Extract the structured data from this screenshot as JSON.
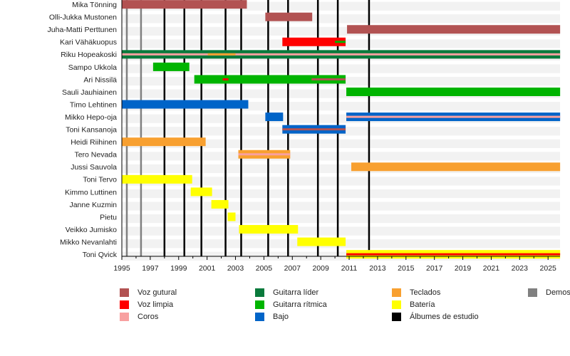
{
  "chart_data": {
    "type": "timeline",
    "xlim": [
      1995,
      2025.85
    ],
    "x_ticks": [
      1995,
      1997,
      1999,
      2001,
      2003,
      2005,
      2007,
      2009,
      2011,
      2013,
      2015,
      2017,
      2019,
      2021,
      2023,
      2025
    ],
    "roles": {
      "voz_gutural": {
        "label": "Voz gutural",
        "color": "#b25252"
      },
      "voz_limpia": {
        "label": "Voz limpia",
        "color": "#ff0000"
      },
      "coros": {
        "label": "Coros",
        "color": "#f8a0a0"
      },
      "guitarra_lider": {
        "label": "Guitarra líder",
        "color": "#0a7a3c"
      },
      "guitarra_ritmica": {
        "label": "Guitarra rítmica",
        "color": "#00b400"
      },
      "bajo": {
        "label": "Bajo",
        "color": "#0064c8"
      },
      "teclados": {
        "label": "Teclados",
        "color": "#f8a030"
      },
      "bateria": {
        "label": "Batería",
        "color": "#ffff00"
      },
      "albumes": {
        "label": "Álbumes de estudio",
        "color": "#000000"
      },
      "demos": {
        "label": "Demos",
        "color": "#808080"
      }
    },
    "legend_columns": [
      [
        "voz_gutural",
        "voz_limpia",
        "coros"
      ],
      [
        "guitarra_lider",
        "guitarra_ritmica",
        "bajo"
      ],
      [
        "teclados",
        "bateria",
        "albumes"
      ],
      [
        "demos"
      ]
    ],
    "demos": [
      1995.35,
      1996.35
    ],
    "albums": [
      1998.0,
      1999.4,
      2000.6,
      2002.3,
      2003.4,
      2005.3,
      2006.7,
      2008.8,
      2010.2,
      2012.4
    ],
    "members": [
      {
        "name": "Mika Tönning",
        "bars": [
          {
            "role": "voz_gutural",
            "start": 1995,
            "end": 2003.8
          }
        ]
      },
      {
        "name": "Olli-Jukka Mustonen",
        "bars": [
          {
            "role": "voz_gutural",
            "start": 2005.1,
            "end": 2008.4
          }
        ]
      },
      {
        "name": "Juha-Matti Perttunen",
        "bars": [
          {
            "role": "voz_gutural",
            "start": 2010.85,
            "end": 2025.85
          }
        ]
      },
      {
        "name": "Kari Vähäkuopus",
        "bars": [
          {
            "role": "voz_limpia",
            "start": 2006.3,
            "end": 2010.75
          },
          {
            "role": "guitarra_ritmica",
            "start": 2010.0,
            "end": 2010.75,
            "thin": true
          }
        ]
      },
      {
        "name": "Riku Hopeakoski",
        "bars": [
          {
            "role": "guitarra_lider",
            "start": 1995,
            "end": 2025.85
          },
          {
            "role": "coros",
            "start": 1995,
            "end": 2025.85,
            "thin": true
          },
          {
            "role": "teclados",
            "start": 2001.05,
            "end": 2003.0,
            "thin": true
          }
        ]
      },
      {
        "name": "Sampo Ukkola",
        "bars": [
          {
            "role": "guitarra_ritmica",
            "start": 1997.2,
            "end": 1999.75
          }
        ]
      },
      {
        "name": "Ari Nissilä",
        "bars": [
          {
            "role": "guitarra_ritmica",
            "start": 2000.1,
            "end": 2010.75
          },
          {
            "role": "voz_limpia",
            "start": 2002.1,
            "end": 2002.5,
            "thin": true
          },
          {
            "role": "voz_gutural",
            "start": 2008.35,
            "end": 2010.75,
            "thin": true
          }
        ]
      },
      {
        "name": "Sauli Jauhiainen",
        "bars": [
          {
            "role": "guitarra_ritmica",
            "start": 2010.8,
            "end": 2025.85
          }
        ]
      },
      {
        "name": "Timo Lehtinen",
        "bars": [
          {
            "role": "bajo",
            "start": 1995,
            "end": 2003.9
          }
        ]
      },
      {
        "name": "Mikko Hepo-oja",
        "bars": [
          {
            "role": "bajo",
            "start": 2005.1,
            "end": 2006.35
          },
          {
            "role": "bajo",
            "start": 2010.8,
            "end": 2025.85
          },
          {
            "role": "coros",
            "start": 2010.8,
            "end": 2025.85,
            "thin": true
          }
        ]
      },
      {
        "name": "Toni Kansanoja",
        "bars": [
          {
            "role": "bajo",
            "start": 2006.3,
            "end": 2010.75
          },
          {
            "role": "voz_gutural",
            "start": 2006.3,
            "end": 2010.75,
            "thin": true
          }
        ]
      },
      {
        "name": "Heidi Riihinen",
        "bars": [
          {
            "role": "teclados",
            "start": 1995,
            "end": 2000.9
          }
        ]
      },
      {
        "name": "Tero Nevada",
        "bars": [
          {
            "role": "teclados",
            "start": 2003.2,
            "end": 2006.85
          },
          {
            "role": "coros",
            "start": 2003.2,
            "end": 2006.85,
            "thin": true
          }
        ]
      },
      {
        "name": "Jussi Sauvola",
        "bars": [
          {
            "role": "teclados",
            "start": 2011.15,
            "end": 2025.85
          }
        ]
      },
      {
        "name": "Toni Tervo",
        "bars": [
          {
            "role": "bateria",
            "start": 1995,
            "end": 1999.95
          }
        ]
      },
      {
        "name": "Kimmo Luttinen",
        "bars": [
          {
            "role": "bateria",
            "start": 1999.85,
            "end": 2001.35
          }
        ]
      },
      {
        "name": "Janne Kuzmin",
        "bars": [
          {
            "role": "bateria",
            "start": 2001.3,
            "end": 2002.5
          }
        ]
      },
      {
        "name": "Pietu",
        "bars": [
          {
            "role": "bateria",
            "start": 2002.45,
            "end": 2003.0
          }
        ]
      },
      {
        "name": "Veikko Jumisko",
        "bars": [
          {
            "role": "bateria",
            "start": 2003.25,
            "end": 2007.4
          }
        ]
      },
      {
        "name": "Mikko Nevanlahti",
        "bars": [
          {
            "role": "bateria",
            "start": 2007.35,
            "end": 2010.75
          }
        ]
      },
      {
        "name": "Toni Qvick",
        "bars": [
          {
            "role": "bateria",
            "start": 2010.8,
            "end": 2025.85
          },
          {
            "role": "voz_limpia",
            "start": 2010.8,
            "end": 2025.85,
            "thin": true
          }
        ]
      }
    ]
  }
}
